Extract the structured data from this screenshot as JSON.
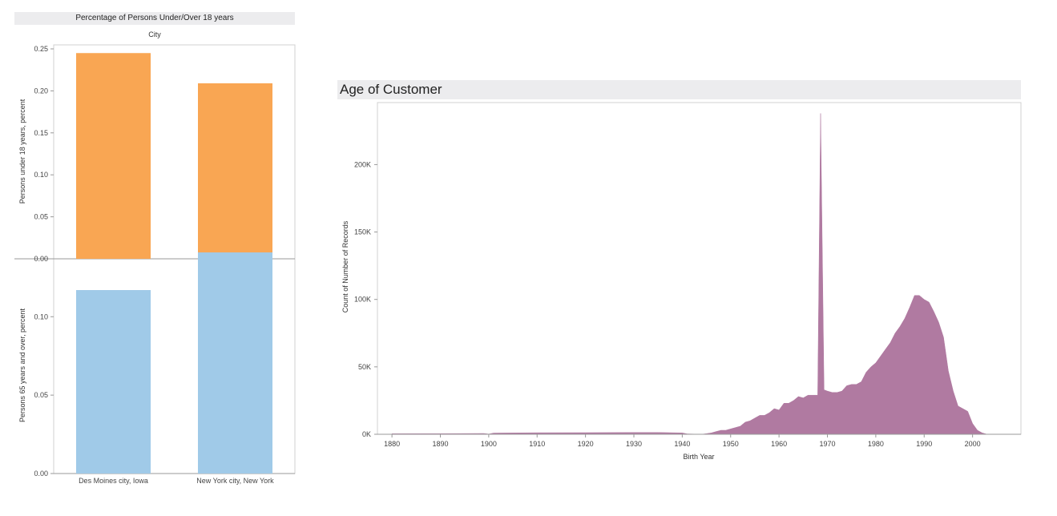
{
  "left_panel": {
    "title": "Percentage of Persons Under/Over 18 years",
    "column_header": "City"
  },
  "right_panel": {
    "title": "Age of Customer"
  },
  "chart_data": [
    {
      "type": "bar",
      "title": "Percentage of Persons Under/Over 18 years",
      "categories": [
        "Des Moines city, Iowa",
        "New York city, New York"
      ],
      "ylabel": "Persons under 18 years, percent",
      "ylim": [
        0,
        0.25
      ],
      "yticks": [
        "0.00",
        "0.05",
        "0.10",
        "0.15",
        "0.20",
        "0.25"
      ],
      "values": [
        0.245,
        0.209
      ],
      "color": "#f9a653"
    },
    {
      "type": "bar",
      "categories": [
        "Des Moines city, Iowa",
        "New York city, New York"
      ],
      "ylabel": "Persons 65 years and over, percent",
      "ylim": [
        0,
        0.14
      ],
      "yticks": [
        "0.00",
        "0.05",
        "0.10"
      ],
      "values": [
        0.117,
        0.141
      ],
      "color": "#a0cae8"
    },
    {
      "type": "area",
      "title": "Age of Customer",
      "xlabel": "Birth Year",
      "ylabel": "Count of Number of Records",
      "xlim": [
        1877,
        2010
      ],
      "ylim": [
        0,
        246000
      ],
      "xticks": [
        "1880",
        "1890",
        "1900",
        "1910",
        "1920",
        "1930",
        "1940",
        "1950",
        "1960",
        "1970",
        "1980",
        "1990",
        "2000"
      ],
      "yticks": [
        {
          "value": 0,
          "label": "0K"
        },
        {
          "value": 50000,
          "label": "50K"
        },
        {
          "value": 100000,
          "label": "100K"
        },
        {
          "value": 150000,
          "label": "150K"
        },
        {
          "value": 200000,
          "label": "200K"
        }
      ],
      "color": "#b07aa1",
      "points": [
        [
          1880,
          400
        ],
        [
          1890,
          500
        ],
        [
          1899,
          600
        ],
        [
          1900,
          200
        ],
        [
          1901,
          900
        ],
        [
          1910,
          1100
        ],
        [
          1920,
          1200
        ],
        [
          1930,
          1300
        ],
        [
          1935,
          1300
        ],
        [
          1940,
          1000
        ],
        [
          1941,
          300
        ],
        [
          1944,
          0
        ],
        [
          1945,
          500
        ],
        [
          1946,
          1000
        ],
        [
          1947,
          2000
        ],
        [
          1948,
          3000
        ],
        [
          1949,
          3000
        ],
        [
          1950,
          4000
        ],
        [
          1951,
          5000
        ],
        [
          1952,
          6000
        ],
        [
          1953,
          9000
        ],
        [
          1954,
          10000
        ],
        [
          1955,
          12000
        ],
        [
          1956,
          14000
        ],
        [
          1957,
          14000
        ],
        [
          1958,
          16000
        ],
        [
          1959,
          19000
        ],
        [
          1960,
          18000
        ],
        [
          1961,
          23000
        ],
        [
          1962,
          23000
        ],
        [
          1963,
          25000
        ],
        [
          1964,
          28000
        ],
        [
          1965,
          27000
        ],
        [
          1966,
          29000
        ],
        [
          1967,
          29000
        ],
        [
          1968,
          29000
        ],
        [
          1968.6,
          238000
        ],
        [
          1969.3,
          33000
        ],
        [
          1970,
          32000
        ],
        [
          1971,
          31000
        ],
        [
          1972,
          31000
        ],
        [
          1973,
          32000
        ],
        [
          1974,
          36000
        ],
        [
          1975,
          37000
        ],
        [
          1976,
          37000
        ],
        [
          1977,
          39000
        ],
        [
          1978,
          46000
        ],
        [
          1979,
          50000
        ],
        [
          1980,
          53000
        ],
        [
          1981,
          58000
        ],
        [
          1982,
          63000
        ],
        [
          1983,
          68000
        ],
        [
          1984,
          75000
        ],
        [
          1985,
          80000
        ],
        [
          1986,
          86000
        ],
        [
          1987,
          94000
        ],
        [
          1988,
          103000
        ],
        [
          1989,
          103000
        ],
        [
          1990,
          100000
        ],
        [
          1991,
          98000
        ],
        [
          1992,
          91000
        ],
        [
          1993,
          83000
        ],
        [
          1994,
          72000
        ],
        [
          1995,
          47000
        ],
        [
          1996,
          32000
        ],
        [
          1997,
          21000
        ],
        [
          1998,
          19000
        ],
        [
          1999,
          17000
        ],
        [
          2000,
          8000
        ],
        [
          2001,
          3000
        ],
        [
          2002,
          1000
        ],
        [
          2003,
          0
        ]
      ]
    }
  ]
}
